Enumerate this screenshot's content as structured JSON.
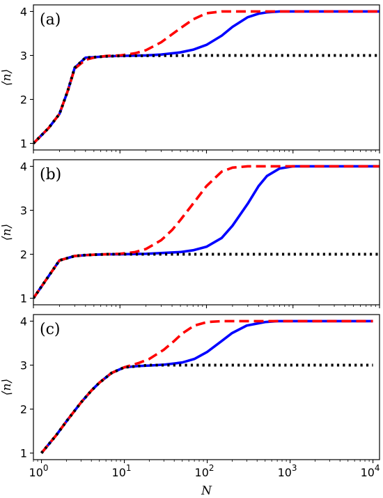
{
  "chart_data": [
    {
      "type": "line",
      "panel_label": "(a)",
      "xscale": "log",
      "xlim": [
        1,
        10000
      ],
      "ylim": [
        0.85,
        4.15
      ],
      "ylabel": "⟨n⟩",
      "xlabel": "",
      "yticks": [
        "1",
        "2",
        "3",
        "4"
      ],
      "xticks": [],
      "grid": false,
      "series": [
        {
          "color": "#0000ff",
          "linestyle": "solid",
          "x": [
            1,
            1.5,
            2,
            2.5,
            3,
            4,
            5,
            7,
            10,
            20,
            30,
            50,
            70,
            100,
            150,
            200,
            300,
            400,
            500,
            700,
            1000,
            2000,
            5000,
            10000
          ],
          "y": [
            1,
            1.35,
            1.67,
            2.2,
            2.72,
            2.95,
            2.96,
            2.98,
            2.99,
            3.0,
            3.02,
            3.07,
            3.13,
            3.24,
            3.45,
            3.65,
            3.87,
            3.95,
            3.98,
            4.0,
            4.0,
            4.0,
            4.0,
            4.0
          ]
        },
        {
          "color": "#ff0000",
          "linestyle": "dashed",
          "x": [
            1,
            1.5,
            2,
            2.5,
            3,
            4,
            5,
            7,
            10,
            15,
            20,
            30,
            40,
            50,
            70,
            100,
            150,
            200,
            500,
            1000,
            10000
          ],
          "y": [
            1,
            1.35,
            1.67,
            2.2,
            2.7,
            2.9,
            2.95,
            2.99,
            3.0,
            3.05,
            3.12,
            3.3,
            3.48,
            3.62,
            3.82,
            3.96,
            4.0,
            4.0,
            4.0,
            4.0,
            4.0
          ]
        },
        {
          "color": "#000000",
          "linestyle": "dotted",
          "x": [
            1,
            1.5,
            2,
            2.5,
            3,
            4,
            5,
            7,
            10,
            100,
            1000,
            10000
          ],
          "y": [
            1,
            1.35,
            1.67,
            2.2,
            2.72,
            2.95,
            2.96,
            2.98,
            2.99,
            3.0,
            3.0,
            3.0
          ]
        }
      ]
    },
    {
      "type": "line",
      "panel_label": "(b)",
      "xscale": "log",
      "xlim": [
        1,
        10000
      ],
      "ylim": [
        0.85,
        4.15
      ],
      "ylabel": "⟨n⟩",
      "xlabel": "",
      "yticks": [
        "1",
        "2",
        "3",
        "4"
      ],
      "xticks": [],
      "grid": false,
      "series": [
        {
          "color": "#0000ff",
          "linestyle": "solid",
          "x": [
            1,
            2,
            3,
            4,
            5,
            7,
            10,
            20,
            50,
            70,
            100,
            150,
            200,
            300,
            400,
            500,
            700,
            1000,
            2000,
            10000
          ],
          "y": [
            1,
            1.86,
            1.96,
            1.98,
            1.99,
            2.0,
            2.0,
            2.01,
            2.05,
            2.09,
            2.17,
            2.37,
            2.65,
            3.15,
            3.55,
            3.78,
            3.95,
            4.0,
            4.0,
            4.0
          ]
        },
        {
          "color": "#ff0000",
          "linestyle": "dashed",
          "x": [
            1,
            2,
            3,
            4,
            5,
            7,
            10,
            15,
            20,
            30,
            40,
            50,
            70,
            100,
            150,
            200,
            300,
            500,
            1000,
            10000
          ],
          "y": [
            1,
            1.86,
            1.96,
            1.98,
            1.99,
            2.0,
            2.01,
            2.05,
            2.12,
            2.32,
            2.55,
            2.78,
            3.15,
            3.55,
            3.88,
            3.97,
            4.0,
            4.0,
            4.0,
            4.0
          ]
        },
        {
          "color": "#000000",
          "linestyle": "dotted",
          "x": [
            1,
            2,
            3,
            4,
            5,
            7,
            10,
            100,
            1000,
            10000
          ],
          "y": [
            1,
            1.86,
            1.96,
            1.98,
            1.99,
            2.0,
            2.0,
            2.0,
            2.0,
            2.0
          ]
        }
      ]
    },
    {
      "type": "line",
      "panel_label": "(c)",
      "xscale": "log",
      "xlim": [
        0.8,
        12000
      ],
      "ylim": [
        0.85,
        4.15
      ],
      "ylabel": "⟨n⟩",
      "xlabel": "N",
      "yticks": [
        "1",
        "2",
        "3",
        "4"
      ],
      "xticks": [
        {
          "base": "10",
          "exp": "0"
        },
        {
          "base": "10",
          "exp": "1"
        },
        {
          "base": "10",
          "exp": "2"
        },
        {
          "base": "10",
          "exp": "3"
        },
        {
          "base": "10",
          "exp": "4"
        }
      ],
      "grid": false,
      "series": [
        {
          "color": "#0000ff",
          "linestyle": "solid",
          "x": [
            1,
            1.5,
            2,
            3,
            4,
            5,
            7,
            10,
            15,
            20,
            30,
            50,
            70,
            100,
            150,
            200,
            300,
            500,
            700,
            1000,
            2000,
            10000
          ],
          "y": [
            1,
            1.4,
            1.72,
            2.15,
            2.42,
            2.6,
            2.82,
            2.95,
            2.98,
            2.99,
            3.01,
            3.06,
            3.14,
            3.3,
            3.55,
            3.73,
            3.9,
            3.98,
            4.0,
            4.0,
            4.0,
            4.0
          ]
        },
        {
          "color": "#ff0000",
          "linestyle": "dashed",
          "x": [
            1,
            1.5,
            2,
            3,
            4,
            5,
            7,
            10,
            15,
            20,
            30,
            40,
            50,
            70,
            100,
            150,
            200,
            500,
            1000,
            10000
          ],
          "y": [
            1,
            1.4,
            1.72,
            2.15,
            2.42,
            2.6,
            2.82,
            2.95,
            3.05,
            3.14,
            3.35,
            3.55,
            3.72,
            3.9,
            3.98,
            4.0,
            4.0,
            4.0,
            4.0,
            4.0
          ]
        },
        {
          "color": "#000000",
          "linestyle": "dotted",
          "x": [
            1,
            1.5,
            2,
            3,
            4,
            5,
            7,
            10,
            20,
            100,
            1000,
            10000
          ],
          "y": [
            1,
            1.4,
            1.72,
            2.15,
            2.42,
            2.6,
            2.82,
            2.95,
            3.0,
            3.0,
            3.0,
            3.0
          ]
        }
      ]
    }
  ]
}
